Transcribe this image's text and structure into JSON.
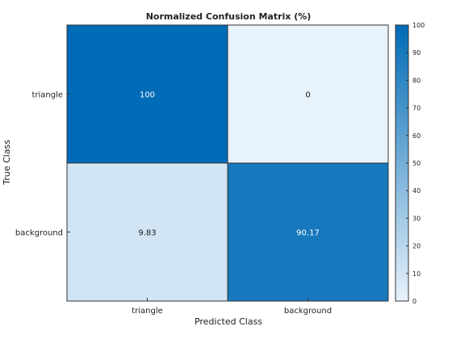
{
  "chart_data": {
    "type": "heatmap",
    "title": "Normalized Confusion Matrix (%)",
    "xlabel": "Predicted Class",
    "ylabel": "True Class",
    "x_categories": [
      "triangle",
      "background"
    ],
    "y_categories": [
      "triangle",
      "background"
    ],
    "values": [
      [
        100,
        0
      ],
      [
        9.83,
        90.17
      ]
    ],
    "cell_labels": [
      [
        "100",
        "0"
      ],
      [
        "9.83",
        "90.17"
      ]
    ],
    "colorbar": {
      "range": [
        0,
        100
      ],
      "ticks": [
        "0",
        "10",
        "20",
        "30",
        "40",
        "50",
        "60",
        "70",
        "80",
        "90",
        "100"
      ],
      "low_color": "#e8f2fb",
      "high_color": "#006bb6"
    },
    "grid": true
  }
}
